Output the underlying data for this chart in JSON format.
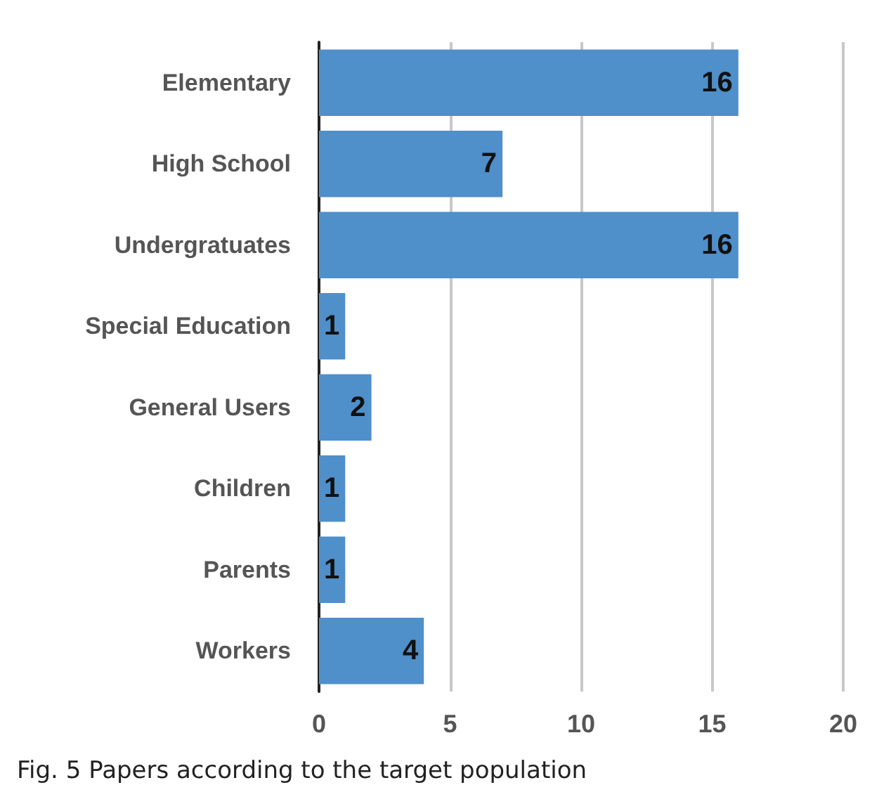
{
  "chart_data": {
    "type": "bar",
    "orientation": "horizontal",
    "categories": [
      "Elementary",
      "High School",
      "Undergratuates",
      "Special Education",
      "General Users",
      "Children",
      "Parents",
      "Workers"
    ],
    "values": [
      16,
      7,
      16,
      1,
      2,
      1,
      1,
      4
    ],
    "color": "#4f8fca",
    "data_labels": true,
    "xlim": [
      0,
      20
    ],
    "xticks": [
      0,
      5,
      10,
      15,
      20
    ],
    "grid": "x",
    "annotations": [
      "Fig. 5 Papers according to the target population"
    ]
  }
}
